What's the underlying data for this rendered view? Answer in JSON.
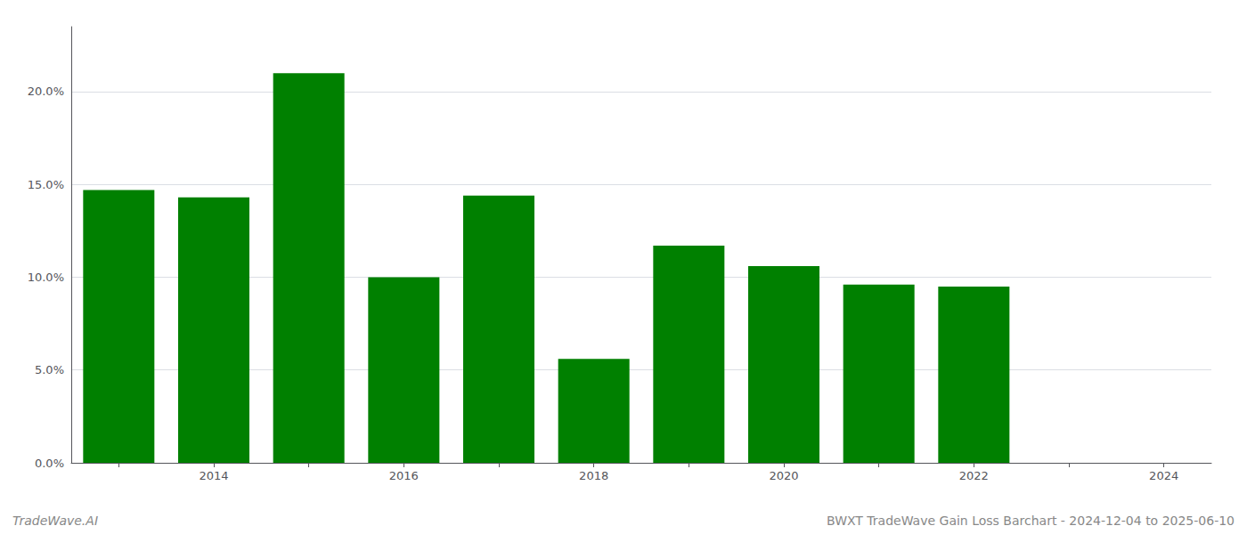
{
  "chart_data": {
    "type": "bar",
    "title": "BWXT TradeWave Gain Loss Barchart - 2024-12-04 to 2025-06-10",
    "annotations": [
      "TradeWave.AI"
    ],
    "categories": [
      null,
      "2014",
      null,
      "2016",
      null,
      "2018",
      null,
      "2020",
      null,
      "2022",
      null,
      "2024"
    ],
    "values": [
      0.147,
      0.143,
      0.21,
      0.1,
      0.144,
      0.056,
      0.117,
      0.106,
      0.096,
      0.095,
      null,
      null
    ],
    "color": "#008000",
    "ylim": [
      0,
      0.235
    ],
    "yticks": [
      {
        "value": 0.0,
        "label": "0.0%"
      },
      {
        "value": 0.05,
        "label": "5.0%"
      },
      {
        "value": 0.1,
        "label": "10.0%"
      },
      {
        "value": 0.15,
        "label": "15.0%"
      },
      {
        "value": 0.2,
        "label": "20.0%"
      }
    ],
    "grid": true
  }
}
